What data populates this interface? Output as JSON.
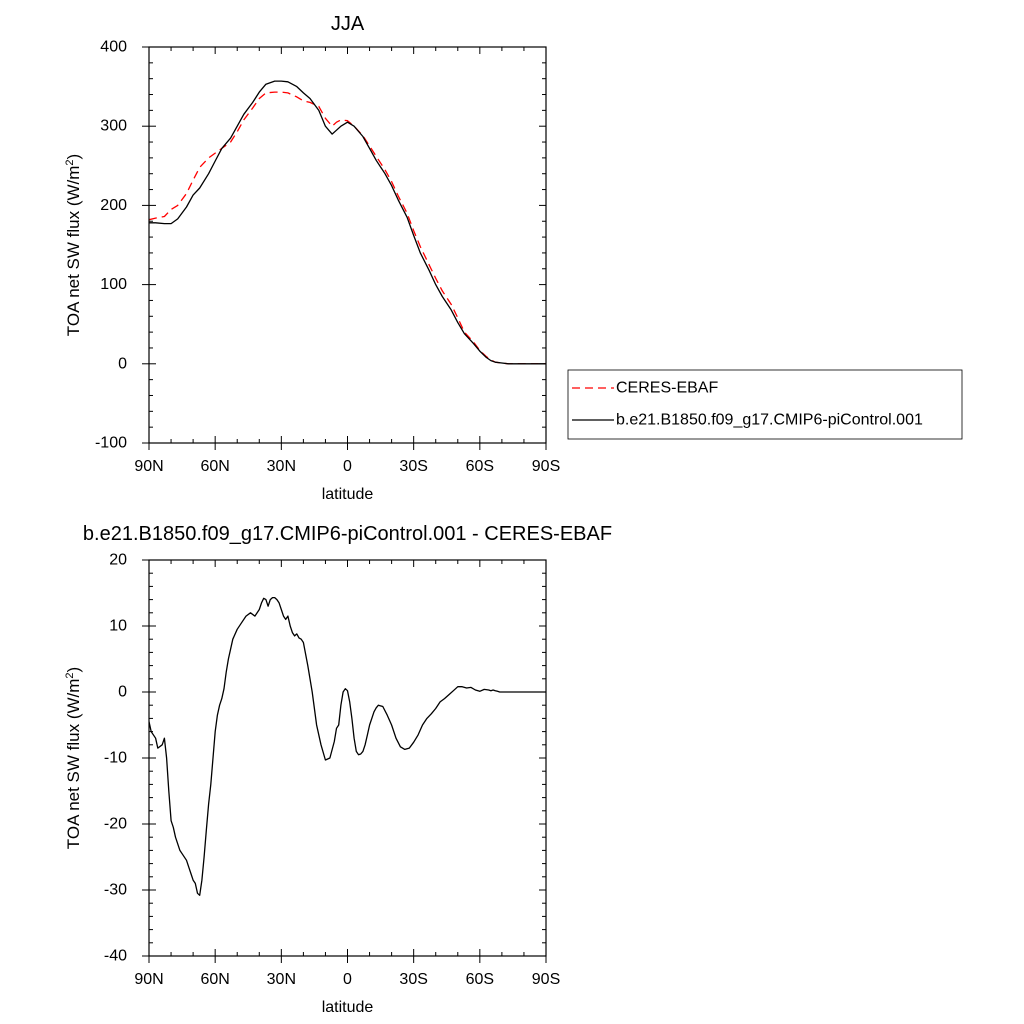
{
  "chart_data": [
    {
      "type": "line",
      "title": "JJA",
      "xlabel": "latitude",
      "ylabel": "TOA net SW flux (W/m",
      "ylabel_sup": "2",
      "ylabel_close": ")",
      "xlim": [
        90,
        -90
      ],
      "ylim": [
        -100,
        400
      ],
      "xticks": [
        90,
        60,
        30,
        0,
        -30,
        -60,
        -90
      ],
      "xtick_labels": [
        "90N",
        "60N",
        "30N",
        "0",
        "30S",
        "60S",
        "90S"
      ],
      "yticks": [
        -100,
        0,
        100,
        200,
        300,
        400
      ],
      "ytick_labels": [
        "-100",
        "0",
        "100",
        "200",
        "300",
        "400"
      ],
      "legend_position": "right",
      "series": [
        {
          "name": "CERES-EBAF",
          "color": "#ff0000",
          "dash": "dashed",
          "x": [
            90,
            87,
            83,
            80,
            77,
            73,
            70,
            67,
            63,
            60,
            57,
            53,
            50,
            47,
            43,
            40,
            37,
            33,
            30,
            27,
            23,
            20,
            17,
            13,
            10,
            7,
            5,
            3,
            0,
            -3,
            -7,
            -10,
            -13,
            -17,
            -20,
            -23,
            -27,
            -30,
            -33,
            -37,
            -40,
            -43,
            -47,
            -50,
            -53,
            -57,
            -60,
            -63,
            -65,
            -67,
            -70,
            -73,
            -77,
            -80,
            -85,
            -90
          ],
          "y": [
            182,
            184,
            186,
            195,
            200,
            215,
            232,
            248,
            260,
            266,
            272,
            280,
            293,
            308,
            323,
            335,
            342,
            343,
            343,
            342,
            337,
            332,
            330,
            325,
            310,
            300,
            305,
            308,
            307,
            300,
            288,
            275,
            262,
            245,
            230,
            212,
            190,
            168,
            148,
            125,
            108,
            92,
            75,
            58,
            40,
            28,
            17,
            9,
            5,
            2,
            1,
            0,
            0,
            0,
            0,
            0
          ]
        },
        {
          "name": "b.e21.B1850.f09_g17.CMIP6-piControl.001",
          "color": "#000000",
          "dash": "solid",
          "x": [
            90,
            87,
            83,
            80,
            77,
            73,
            70,
            67,
            63,
            60,
            57,
            53,
            50,
            47,
            43,
            40,
            37,
            33,
            30,
            27,
            23,
            20,
            17,
            13,
            10,
            7,
            5,
            3,
            0,
            -3,
            -7,
            -10,
            -13,
            -17,
            -20,
            -23,
            -27,
            -30,
            -33,
            -37,
            -40,
            -43,
            -47,
            -50,
            -53,
            -57,
            -60,
            -63,
            -65,
            -67,
            -70,
            -73,
            -77,
            -80,
            -85,
            -90
          ],
          "y": [
            178,
            178,
            177,
            177,
            183,
            198,
            213,
            222,
            240,
            256,
            272,
            285,
            300,
            315,
            330,
            343,
            353,
            357,
            357,
            356,
            350,
            342,
            335,
            320,
            300,
            290,
            295,
            300,
            305,
            300,
            287,
            272,
            257,
            240,
            225,
            207,
            185,
            162,
            140,
            118,
            100,
            85,
            68,
            52,
            38,
            26,
            16,
            8,
            4,
            2,
            1,
            0,
            0,
            0,
            0,
            0
          ]
        }
      ]
    },
    {
      "type": "line",
      "title": "b.e21.B1850.f09_g17.CMIP6-piControl.001 - CERES-EBAF",
      "xlabel": "latitude",
      "ylabel": "TOA net SW flux (W/m",
      "ylabel_sup": "2",
      "ylabel_close": ")",
      "xlim": [
        90,
        -90
      ],
      "ylim": [
        -40,
        20
      ],
      "xticks": [
        90,
        60,
        30,
        0,
        -30,
        -60,
        -90
      ],
      "xtick_labels": [
        "90N",
        "60N",
        "30N",
        "0",
        "30S",
        "60S",
        "90S"
      ],
      "yticks": [
        -40,
        -30,
        -20,
        -10,
        0,
        10,
        20
      ],
      "ytick_labels": [
        "-40",
        "-30",
        "-20",
        "-10",
        "0",
        "10",
        "20"
      ],
      "series": [
        {
          "name": "",
          "color": "#000000",
          "dash": "solid",
          "x": [
            90,
            89,
            87,
            86,
            84,
            83,
            82,
            81,
            80,
            79,
            78,
            76,
            75,
            73,
            72,
            71,
            70,
            69,
            68,
            67,
            66,
            65,
            64,
            63,
            62,
            61,
            60,
            59,
            58,
            57,
            56,
            55,
            54,
            52,
            50,
            48,
            46,
            44,
            42,
            40,
            39,
            38,
            37,
            36,
            35,
            34,
            33,
            32,
            31,
            30,
            29,
            28,
            27,
            26,
            25,
            24,
            23,
            22,
            21,
            20,
            18,
            16,
            14,
            12,
            10,
            8,
            6,
            5,
            4,
            3,
            2,
            1,
            0,
            -1,
            -2,
            -3,
            -4,
            -5,
            -6,
            -7,
            -8,
            -9,
            -10,
            -11,
            -12,
            -13,
            -14,
            -16,
            -18,
            -20,
            -22,
            -24,
            -26,
            -28,
            -30,
            -32,
            -34,
            -36,
            -38,
            -40,
            -42,
            -44,
            -46,
            -48,
            -50,
            -52,
            -54,
            -56,
            -58,
            -60,
            -62,
            -64,
            -65,
            -66,
            -67,
            -68,
            -69,
            -70,
            -72,
            -74,
            -76,
            -78,
            -80,
            -82,
            -84,
            -86,
            -88,
            -90
          ],
          "y": [
            -4.5,
            -6,
            -7,
            -8.5,
            -8,
            -7,
            -10,
            -15,
            -19.5,
            -20.5,
            -22,
            -24,
            -24.5,
            -25.5,
            -26.5,
            -27.5,
            -28.5,
            -29,
            -30.5,
            -30.8,
            -28.5,
            -25,
            -21,
            -17,
            -14,
            -10,
            -6,
            -3.5,
            -2,
            -1,
            0.5,
            3,
            5,
            8,
            9.5,
            10.5,
            11.5,
            12,
            11.5,
            12.5,
            13.5,
            14.2,
            14,
            13,
            14,
            14.3,
            14.3,
            14,
            13.5,
            12.5,
            11.5,
            11,
            11.5,
            10,
            9,
            8.5,
            8.8,
            8.2,
            8,
            7.5,
            4,
            0,
            -5,
            -8,
            -10.3,
            -10,
            -7.5,
            -5.5,
            -5,
            -2,
            0,
            0.5,
            0.2,
            -1.5,
            -4,
            -7,
            -9,
            -9.5,
            -9.4,
            -9,
            -8,
            -6.5,
            -5,
            -4,
            -3,
            -2.4,
            -2,
            -2.2,
            -3.5,
            -5,
            -7,
            -8.3,
            -8.7,
            -8.5,
            -7.6,
            -6.5,
            -5,
            -4,
            -3.3,
            -2.5,
            -1.5,
            -1,
            -0.4,
            0.2,
            0.8,
            0.8,
            0.6,
            0.7,
            0.3,
            0.1,
            0.4,
            0.3,
            0.2,
            0.3,
            0.2,
            0.1,
            0,
            0,
            0,
            0,
            0,
            0,
            0,
            0,
            0,
            0,
            0,
            0
          ]
        }
      ]
    }
  ]
}
